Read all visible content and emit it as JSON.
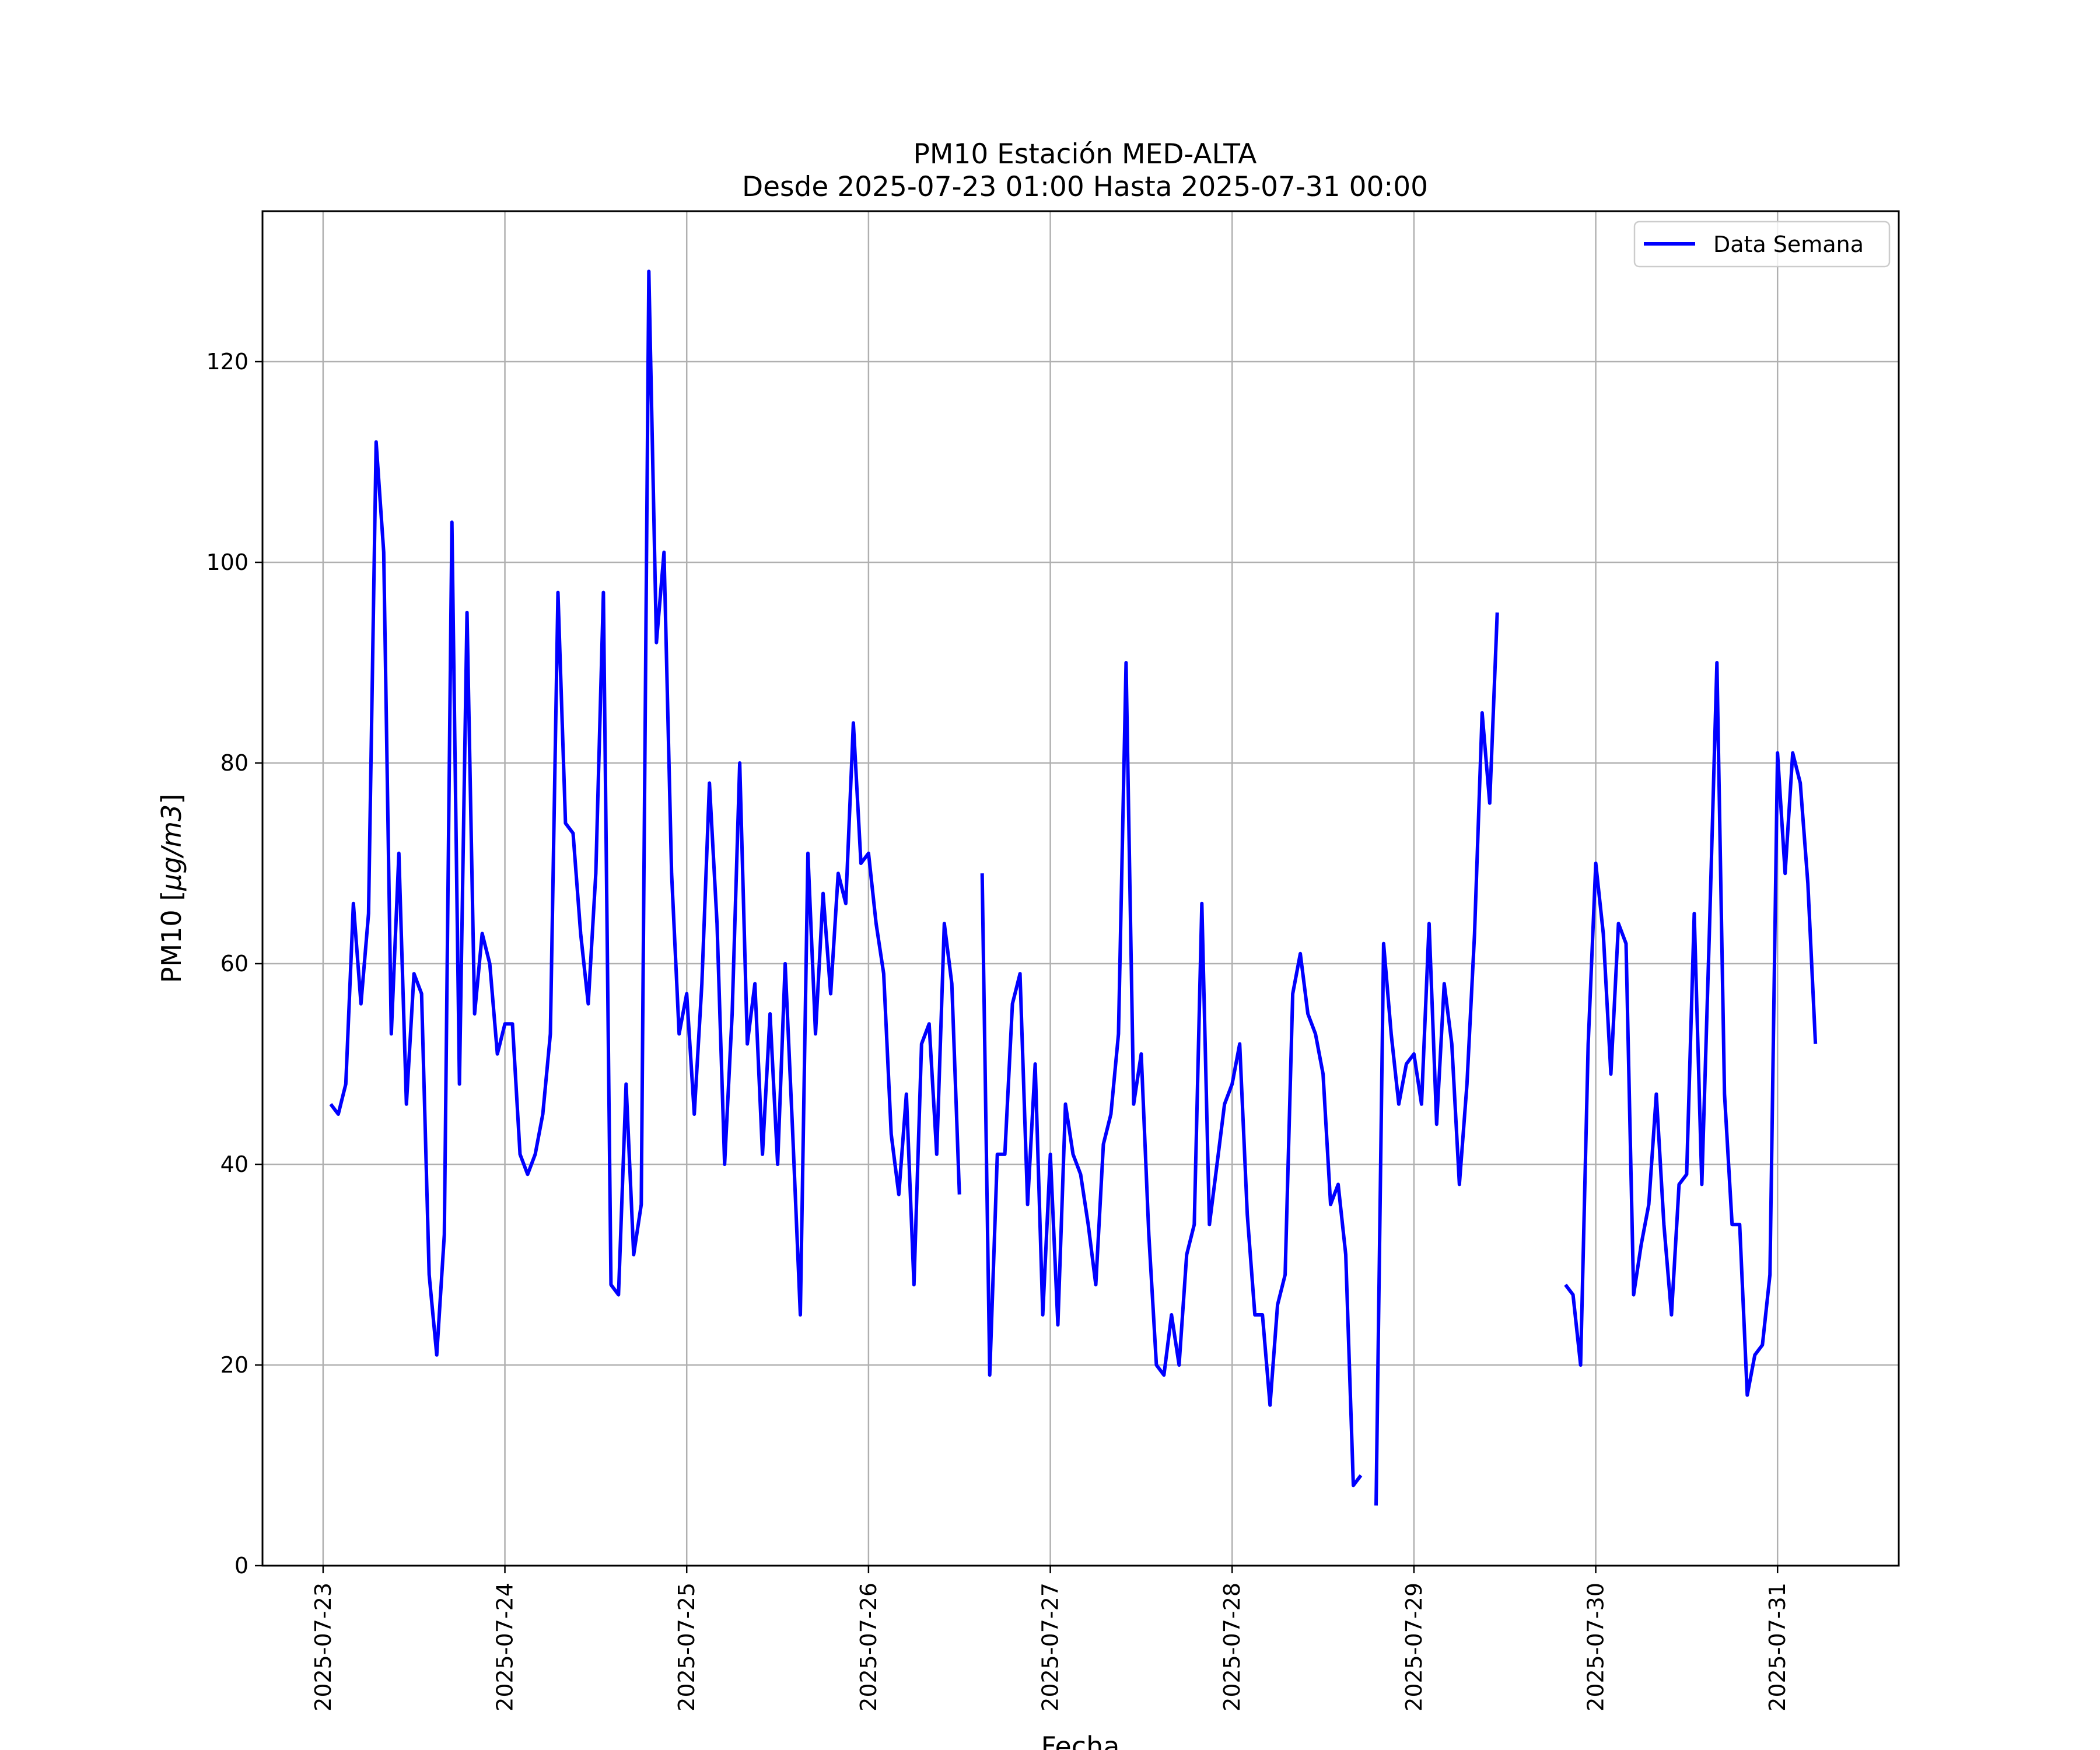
{
  "chart_data": {
    "type": "line",
    "title": "PM10 Estación MED-ALTA",
    "subtitle": "Desde 2025-07-23 01:00 Hasta 2025-07-31 00:00",
    "xlabel": "Fecha",
    "ylabel_prefix": "PM10 [",
    "ylabel_math": "μg/m3",
    "ylabel_suffix": "]",
    "x_ticks": [
      "2025-07-23",
      "2025-07-24",
      "2025-07-25",
      "2025-07-26",
      "2025-07-27",
      "2025-07-28",
      "2025-07-29",
      "2025-07-30",
      "2025-07-31"
    ],
    "y_ticks": [
      "0",
      "20",
      "40",
      "60",
      "80",
      "100",
      "120"
    ],
    "xlim": [
      "2025-07-22 16:00",
      "2025-07-31 16:00"
    ],
    "ylim": [
      0,
      135
    ],
    "grid": true,
    "legend_position": "top-right",
    "colors": {
      "series": "#0000ff",
      "grid": "#b0b0b0"
    },
    "series": [
      {
        "name": "Data Semana",
        "x_start": "2025-07-23 01:00",
        "interval": "1 hour",
        "values": [
          46,
          45,
          48,
          66,
          56,
          65,
          112,
          101,
          53,
          71,
          46,
          59,
          57,
          29,
          21,
          33,
          104,
          48,
          95,
          55,
          63,
          60,
          51,
          54,
          54,
          41,
          39,
          41,
          45,
          53,
          97,
          74,
          73,
          63,
          56,
          69,
          97,
          28,
          27,
          48,
          31,
          36,
          129,
          92,
          101,
          69,
          53,
          57,
          45,
          58,
          78,
          64,
          40,
          55,
          80,
          52,
          58,
          41,
          55,
          40,
          60,
          43,
          25,
          71,
          53,
          67,
          57,
          69,
          66,
          84,
          70,
          71,
          64,
          59,
          43,
          37,
          47,
          28,
          52,
          54,
          41,
          64,
          58,
          37,
          null,
          null,
          69,
          19,
          41,
          41,
          56,
          59,
          36,
          50,
          25,
          41,
          24,
          46,
          41,
          39,
          34,
          28,
          42,
          45,
          53,
          90,
          46,
          51,
          33,
          20,
          19,
          25,
          20,
          31,
          34,
          66,
          34,
          40,
          46,
          48,
          52,
          35,
          25,
          25,
          16,
          26,
          29,
          57,
          61,
          55,
          53,
          49,
          36,
          38,
          31,
          8,
          9,
          null,
          6,
          62,
          53,
          46,
          50,
          51,
          46,
          64,
          44,
          58,
          52,
          38,
          48,
          63,
          85,
          76,
          95,
          null,
          null,
          null,
          null,
          null,
          null,
          null,
          null,
          28,
          27,
          20,
          52,
          70,
          63,
          49,
          64,
          62,
          27,
          32,
          36,
          47,
          34,
          25,
          38,
          39,
          65,
          38,
          63,
          90,
          47,
          34,
          34,
          17,
          21,
          22,
          29,
          81,
          69,
          81,
          78,
          68,
          52
        ]
      }
    ]
  }
}
